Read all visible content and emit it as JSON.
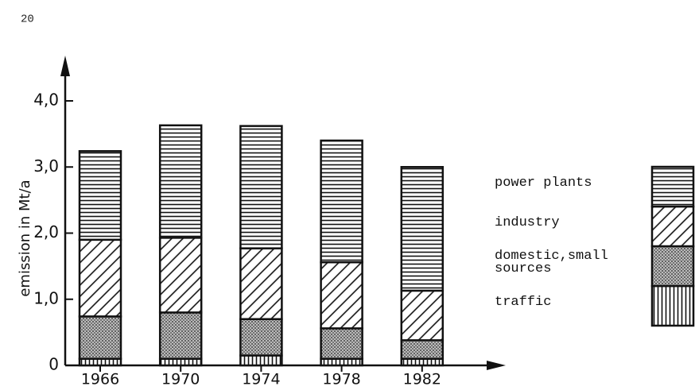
{
  "page_number": "20",
  "chart_data": {
    "type": "stacked_bar",
    "y_label": "emission in Mt/a",
    "categories": [
      "1966",
      "1970",
      "1974",
      "1978",
      "1982"
    ],
    "series": [
      {
        "name": "traffic",
        "color": "#111111",
        "pattern": "vertical",
        "values": [
          0.1,
          0.1,
          0.15,
          0.1,
          0.1
        ]
      },
      {
        "name": "domestic,small\nsources",
        "color": "#111111",
        "pattern": "dots",
        "values": [
          0.64,
          0.7,
          0.55,
          0.46,
          0.28
        ]
      },
      {
        "name": "industry",
        "color": "#111111",
        "pattern": "diagonal",
        "values": [
          1.16,
          1.13,
          1.07,
          1.0,
          0.75
        ]
      },
      {
        "name": "power plants",
        "color": "#111111",
        "pattern": "horizontal",
        "values": [
          1.34,
          1.7,
          1.85,
          1.84,
          1.87
        ]
      }
    ],
    "ylim": [
      0,
      4.4
    ],
    "yticks": [
      0,
      {
        "value": 1,
        "label": "1,0"
      },
      {
        "value": 2,
        "label": "2,0"
      },
      {
        "value": 3,
        "label": "3,0"
      },
      {
        "value": 4,
        "label": "4,0"
      }
    ],
    "legend": "right"
  }
}
